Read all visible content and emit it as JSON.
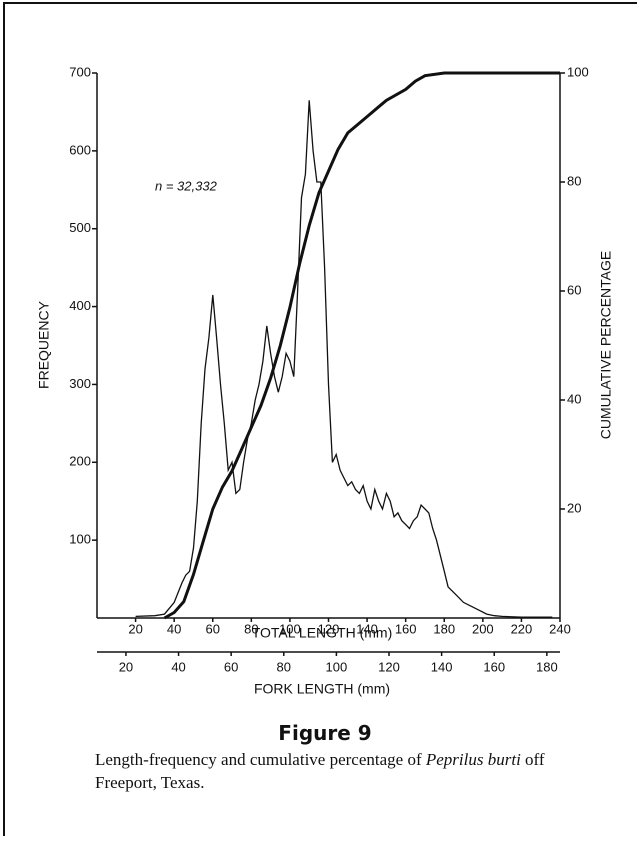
{
  "chart_data": {
    "type": "line",
    "annotation": "n = 32,332",
    "xlabel": "TOTAL LENGTH (mm)",
    "ylabel": "FREQUENCY",
    "y2label": "CUMULATIVE PERCENTAGE",
    "x2label": "FORK LENGTH (mm)",
    "xlim": [
      0,
      240
    ],
    "xticks": [
      20,
      40,
      60,
      80,
      100,
      120,
      140,
      160,
      180,
      200,
      220,
      240
    ],
    "x2lim": [
      9,
      185
    ],
    "x2ticks": [
      20,
      40,
      60,
      80,
      100,
      120,
      140,
      160,
      180
    ],
    "ylim": [
      0,
      700
    ],
    "yticks": [
      100,
      200,
      300,
      400,
      500,
      600,
      700
    ],
    "y2lim": [
      0,
      100
    ],
    "y2ticks": [
      20,
      40,
      60,
      80,
      100
    ],
    "series": [
      {
        "color": "#111111",
        "x": [
          20,
          30,
          35,
          40,
          44,
          46,
          48,
          50,
          52,
          54,
          56,
          58,
          60,
          62,
          64,
          66,
          68,
          70,
          72,
          74,
          76,
          78,
          80,
          82,
          84,
          86,
          88,
          90,
          92,
          94,
          96,
          98,
          100,
          102,
          104,
          106,
          108,
          110,
          112,
          114,
          116,
          118,
          120,
          122,
          124,
          126,
          128,
          130,
          132,
          134,
          136,
          138,
          140,
          142,
          144,
          146,
          148,
          150,
          152,
          154,
          156,
          158,
          160,
          162,
          164,
          166,
          168,
          170,
          172,
          174,
          176,
          178,
          180,
          182,
          186,
          190,
          194,
          198,
          202,
          206,
          210,
          220,
          230,
          236
        ],
        "values": [
          2,
          3,
          5,
          20,
          45,
          55,
          60,
          90,
          150,
          250,
          320,
          360,
          415,
          360,
          300,
          250,
          190,
          200,
          160,
          165,
          200,
          230,
          250,
          280,
          300,
          330,
          375,
          340,
          310,
          290,
          310,
          340,
          330,
          310,
          420,
          540,
          570,
          665,
          600,
          560,
          560,
          450,
          300,
          200,
          210,
          190,
          180,
          170,
          175,
          165,
          160,
          170,
          150,
          140,
          165,
          150,
          140,
          160,
          150,
          130,
          135,
          125,
          120,
          115,
          125,
          130,
          145,
          140,
          135,
          115,
          100,
          80,
          60,
          40,
          30,
          20,
          15,
          10,
          5,
          3,
          2,
          1,
          1,
          1
        ]
      },
      {
        "color": "#111111",
        "axis": "y2",
        "x": [
          35,
          40,
          45,
          50,
          55,
          60,
          65,
          70,
          75,
          80,
          85,
          90,
          95,
          100,
          105,
          110,
          115,
          120,
          125,
          130,
          140,
          150,
          160,
          165,
          170,
          180,
          240
        ],
        "values": [
          0,
          1,
          3,
          8,
          14,
          20,
          24,
          27,
          31,
          35,
          39,
          44,
          50,
          57,
          65,
          72,
          78,
          82,
          86,
          89,
          92,
          95,
          97,
          98.5,
          99.5,
          100,
          100
        ]
      }
    ]
  },
  "figure": {
    "label": "Figure 9",
    "caption_before": "Length-frequency and cumulative percentage of",
    "caption_species": "Peprilus burti",
    "caption_after": "off Freeport, Texas."
  }
}
